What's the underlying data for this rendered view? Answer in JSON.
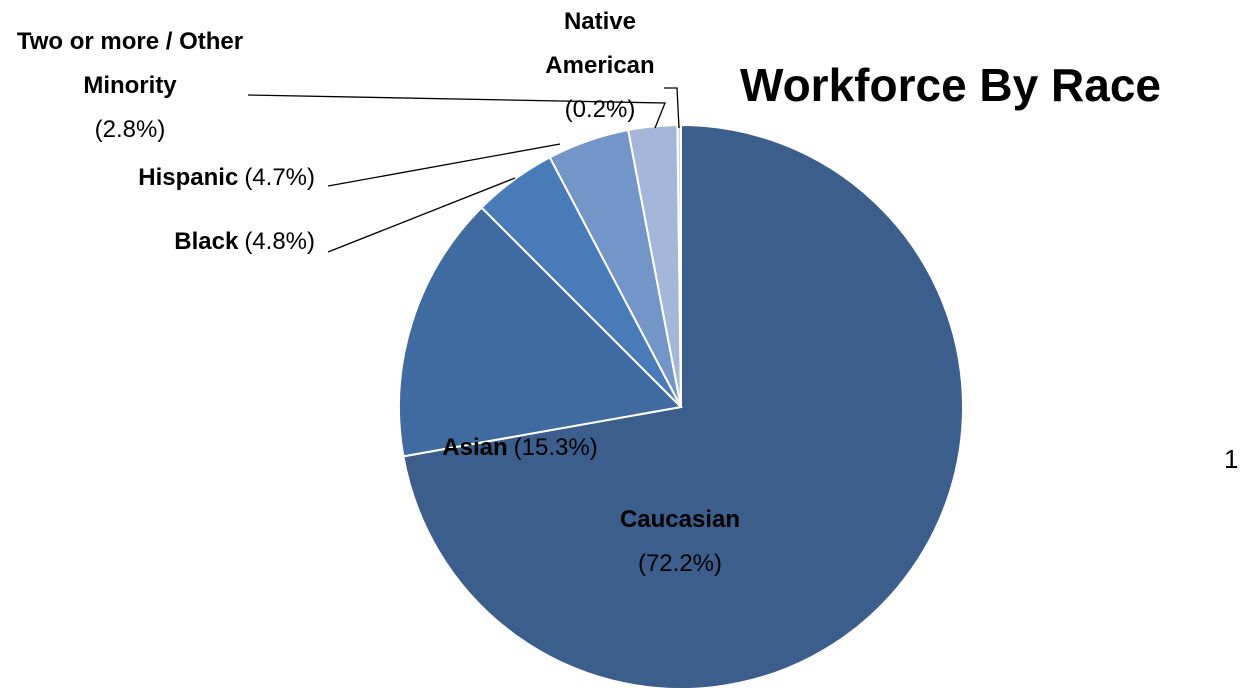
{
  "chart_data": {
    "type": "pie",
    "title": "Workforce By Race",
    "categories": [
      "Caucasian",
      "Asian",
      "Black",
      "Hispanic",
      "Two or more / Other Minority",
      "Native American"
    ],
    "values": [
      72.2,
      15.3,
      4.8,
      4.7,
      2.8,
      0.2
    ],
    "value_labels": [
      "(72.2%)",
      "(15.3%)",
      "(4.8%)",
      "(4.7%)",
      "(2.8%)",
      "(0.2%)"
    ],
    "colors": [
      "#3b5e8c",
      "#3f6ba1",
      "#4a7bb9",
      "#7395c7",
      "#a4b7d9",
      "#c9d5ea"
    ]
  },
  "page_number": "1"
}
